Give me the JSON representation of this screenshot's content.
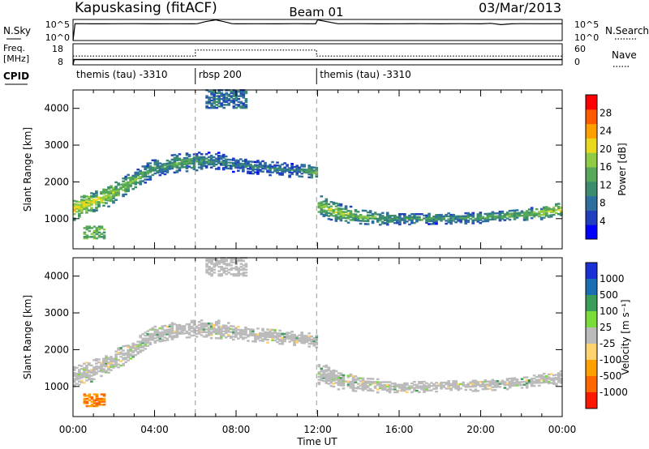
{
  "header": {
    "station": "Kapuskasing (fitACF)",
    "beam": "Beam 01",
    "date": "03/Mar/2013"
  },
  "strips": {
    "nsky": {
      "label": "N.Sky",
      "top_tick": "10^5",
      "bottom_tick": "10^0"
    },
    "nsearch": {
      "label": "N.Search",
      "top_tick": "10^5",
      "bottom_tick": "10^0"
    },
    "freq": {
      "label_line1": "Freq.",
      "label_line2": "[MHz]",
      "top_tick": "18",
      "bottom_tick": "8"
    },
    "nave": {
      "label": "Nave",
      "top_tick": "60",
      "bottom_tick": "0"
    },
    "cpid": {
      "label": "CPID",
      "segments": [
        {
          "text": "themis (tau) -3310",
          "start_hour": 0.0,
          "end_hour": 6.0
        },
        {
          "text": "rbsp 200",
          "start_hour": 6.0,
          "end_hour": 11.95
        },
        {
          "text": "themis (tau) -3310",
          "start_hour": 11.95,
          "end_hour": 24.0
        }
      ]
    }
  },
  "xaxis": {
    "title": "Time UT",
    "ticks": [
      "00:00",
      "04:00",
      "08:00",
      "12:00",
      "16:00",
      "20:00",
      "00:00"
    ],
    "tick_hours": [
      0,
      4,
      8,
      12,
      16,
      20,
      24
    ]
  },
  "power_colorbar": {
    "label": "Power [dB]",
    "tick_labels": [
      "28",
      "24",
      "20",
      "16",
      "12",
      "8",
      "4"
    ],
    "tick_values": [
      28,
      24,
      20,
      16,
      12,
      8,
      4
    ],
    "range": [
      0,
      32
    ],
    "colors": [
      "#0000ff",
      "#1f3fbf",
      "#2e6f9e",
      "#3c8c6e",
      "#58a85a",
      "#8fcc44",
      "#e8d81e",
      "#ffa000",
      "#ff5a00",
      "#ff0000"
    ]
  },
  "velocity_colorbar": {
    "label": "Velocity [m s⁻¹]",
    "tick_labels": [
      "1000",
      "500",
      "100",
      "25",
      "-25",
      "-100",
      "-500",
      "-1000"
    ],
    "colors": [
      "#1a2fd4",
      "#1a6fb4",
      "#3a9e5a",
      "#7adc3a",
      "#bbbbbb",
      "#ffd26e",
      "#ffa000",
      "#ff6800",
      "#ff1800"
    ]
  },
  "chart_data": [
    {
      "type": "line",
      "title": "",
      "series": [
        {
          "name": "N.Sky",
          "x": [
            0,
            0.1,
            1,
            2,
            3,
            4,
            5,
            5.9,
            6.1,
            6.5,
            7,
            7.4,
            7.8,
            8,
            9,
            10,
            11,
            11.9,
            12,
            13,
            14,
            15,
            16,
            17,
            18,
            19,
            20,
            20.5,
            21,
            21.5,
            22,
            23,
            24
          ],
          "y": [
            1,
            10000,
            9000,
            9500,
            10000,
            9000,
            9500,
            9000,
            10000,
            30000,
            80000,
            30000,
            10000,
            9000,
            9500,
            9000,
            10000,
            9000,
            80000,
            9500,
            10000,
            9000,
            9500,
            10000,
            9000,
            10000,
            9000,
            12000,
            6000,
            9000,
            10000,
            9500,
            10000
          ]
        }
      ],
      "ylim_labels": [
        "10^0",
        "10^5"
      ]
    },
    {
      "type": "line",
      "title": "",
      "series": [
        {
          "name": "Freq.",
          "x": [
            0,
            0.05,
            6,
            11.95,
            24
          ],
          "y": [
            8,
            10.5,
            10.5,
            10.5,
            10.5
          ]
        },
        {
          "name": "Nave",
          "x": [
            0,
            6,
            6,
            11.95,
            11.95,
            24
          ],
          "y": [
            25,
            25,
            42,
            42,
            25,
            25
          ]
        }
      ]
    },
    {
      "type": "heatmap",
      "title": "",
      "xlabel": "Time UT",
      "ylabel": "Slant Range [km]",
      "x_range_hours": [
        0,
        24
      ],
      "ylim": [
        180,
        4500
      ],
      "yticks": [
        1000,
        2000,
        3000,
        4000
      ],
      "colorbar_label": "Power [dB]",
      "color_range": [
        0,
        32
      ],
      "scatter_band": {
        "center_km": [
          [
            0,
            1250
          ],
          [
            1,
            1450
          ],
          [
            2,
            1700
          ],
          [
            3,
            2050
          ],
          [
            4,
            2400
          ],
          [
            5,
            2500
          ],
          [
            6,
            2550
          ],
          [
            7,
            2550
          ],
          [
            8,
            2450
          ],
          [
            9,
            2400
          ],
          [
            10,
            2350
          ],
          [
            11,
            2300
          ],
          [
            11.9,
            2250
          ],
          [
            12,
            1350
          ],
          [
            13,
            1150
          ],
          [
            14,
            1050
          ],
          [
            15,
            1000
          ],
          [
            16,
            980
          ],
          [
            17,
            980
          ],
          [
            18,
            1000
          ],
          [
            19,
            1000
          ],
          [
            20,
            1020
          ],
          [
            21,
            1050
          ],
          [
            22,
            1100
          ],
          [
            23,
            1150
          ],
          [
            24,
            1250
          ]
        ],
        "halfwidth_km": [
          [
            0,
            300
          ],
          [
            1,
            300
          ],
          [
            2,
            300
          ],
          [
            3,
            250
          ],
          [
            4,
            250
          ],
          [
            5,
            250
          ],
          [
            6,
            250
          ],
          [
            7,
            250
          ],
          [
            8,
            200
          ],
          [
            9,
            200
          ],
          [
            10,
            200
          ],
          [
            11,
            200
          ],
          [
            11.9,
            200
          ],
          [
            12,
            300
          ],
          [
            13,
            250
          ],
          [
            14,
            200
          ],
          [
            15,
            180
          ],
          [
            16,
            150
          ],
          [
            17,
            150
          ],
          [
            18,
            150
          ],
          [
            19,
            150
          ],
          [
            20,
            150
          ],
          [
            21,
            150
          ],
          [
            22,
            150
          ],
          [
            23,
            180
          ],
          [
            24,
            200
          ]
        ],
        "peak_power_db": [
          [
            0,
            22
          ],
          [
            1,
            20
          ],
          [
            2,
            18
          ],
          [
            3,
            16
          ],
          [
            4,
            12
          ],
          [
            5,
            14
          ],
          [
            6,
            12
          ],
          [
            7,
            10
          ],
          [
            8,
            10
          ],
          [
            9,
            9
          ],
          [
            10,
            9
          ],
          [
            11,
            9
          ],
          [
            12,
            18
          ],
          [
            13,
            18
          ],
          [
            14,
            16
          ],
          [
            15,
            14
          ],
          [
            16,
            12
          ],
          [
            17,
            12
          ],
          [
            18,
            12
          ],
          [
            19,
            12
          ],
          [
            20,
            14
          ],
          [
            21,
            14
          ],
          [
            22,
            16
          ],
          [
            23,
            18
          ],
          [
            24,
            20
          ]
        ]
      },
      "patches": [
        {
          "hours": [
            0.5,
            1.5
          ],
          "range_km": [
            450,
            800
          ],
          "power_db": 14
        },
        {
          "hours": [
            6.5,
            8.5
          ],
          "range_km": [
            4000,
            4500
          ],
          "power_db": 8
        }
      ]
    },
    {
      "type": "heatmap",
      "title": "",
      "xlabel": "Time UT",
      "ylabel": "Slant Range [km]",
      "x_range_hours": [
        0,
        24
      ],
      "ylim": [
        180,
        4500
      ],
      "yticks": [
        1000,
        2000,
        3000,
        4000
      ],
      "colorbar_label": "Velocity [m s⁻¹]",
      "dominant_velocity_class": "-25 to 25 (ground scatter)",
      "patches": [
        {
          "hours": [
            0.5,
            1.5
          ],
          "range_km": [
            450,
            800
          ],
          "velocity_class": "-100 to -500"
        },
        {
          "hours": [
            6.5,
            8.5
          ],
          "range_km": [
            4000,
            4500
          ],
          "velocity_class": "-25 to 25"
        }
      ]
    }
  ]
}
